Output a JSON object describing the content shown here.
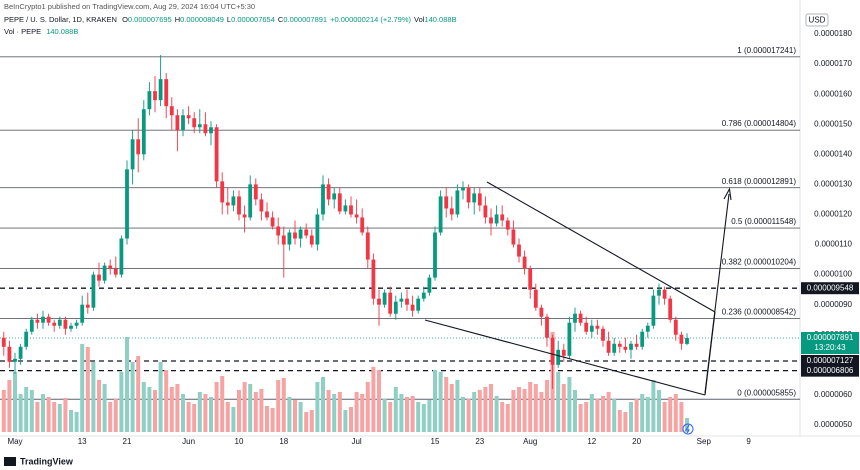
{
  "header": {
    "published": "BeInCrypto1 published on TradingView.com, Aug 29, 2024 16:04 UTC+5:30",
    "symbol": "PEPE / U. S. Dollar, 1D, KRAKEN",
    "ohlc": [
      {
        "key": "O",
        "value": "0.000007695"
      },
      {
        "key": "H",
        "value": "0.000008049"
      },
      {
        "key": "L",
        "value": "0.000007654"
      },
      {
        "key": "C",
        "value": "0.000007891"
      }
    ],
    "change": "+0.000000214 (+2.79%)",
    "vol_key": "Vol",
    "vol_value": "140.088B",
    "volume_title": "Vol · PEPE",
    "volume_value": "140.088B",
    "currency": "USD",
    "brand": "TradingView"
  },
  "chart_data": {
    "type": "candlestick",
    "categories": [
      null,
      null,
      "May",
      null,
      null,
      null,
      null,
      null,
      null,
      null,
      null,
      null,
      null,
      null,
      "13",
      null,
      null,
      null,
      null,
      null,
      null,
      null,
      "21",
      null,
      null,
      null,
      null,
      null,
      null,
      null,
      null,
      null,
      null,
      "Jun",
      null,
      null,
      null,
      null,
      null,
      null,
      null,
      null,
      "10",
      null,
      null,
      null,
      null,
      null,
      null,
      null,
      "18",
      null,
      null,
      null,
      null,
      null,
      null,
      null,
      null,
      null,
      null,
      null,
      null,
      "Jul",
      null,
      null,
      null,
      null,
      null,
      null,
      null,
      null,
      null,
      null,
      null,
      null,
      null,
      "15",
      null,
      null,
      null,
      null,
      null,
      null,
      null,
      "23",
      null,
      null,
      null,
      null,
      null,
      null,
      null,
      null,
      "Aug",
      null,
      null,
      null,
      null,
      null,
      null,
      null,
      null,
      null,
      null,
      "12",
      null,
      null,
      null,
      null,
      null,
      null,
      null,
      "20",
      null,
      null,
      null,
      null,
      null,
      null,
      null,
      null,
      null,
      null,
      null,
      "Sep",
      null,
      null,
      null,
      null,
      null,
      null,
      null,
      "9",
      null
    ],
    "open": [
      7.9e-06,
      7.6e-06,
      7.1e-06,
      7.2e-06,
      7.6e-06,
      8.1e-06,
      8.5e-06,
      8.4e-06,
      8.6e-06,
      8.4e-06,
      8.3e-06,
      8.5e-06,
      8.2e-06,
      8.3e-06,
      8.4e-06,
      9e-06,
      8.9e-06,
      1e-05,
      9.8e-06,
      1.03e-05,
      1.02e-05,
      1e-05,
      1.12e-05,
      1.35e-05,
      1.45e-05,
      1.4e-05,
      1.55e-05,
      1.61e-05,
      1.58e-05,
      1.65e-05,
      1.56e-05,
      1.53e-05,
      1.48e-05,
      1.53e-05,
      1.52e-05,
      1.49e-05,
      1.5e-05,
      1.47e-05,
      1.49e-05,
      1.31e-05,
      1.24e-05,
      1.23e-05,
      1.26e-05,
      1.2e-05,
      1.19e-05,
      1.3e-05,
      1.25e-05,
      1.21e-05,
      1.19e-05,
      1.16e-05,
      1.13e-05,
      1.1e-05,
      1.14e-05,
      1.12e-05,
      1.15e-05,
      1.13e-05,
      1.1e-05,
      1.2e-05,
      1.3e-05,
      1.25e-05,
      1.27e-05,
      1.21e-05,
      1.23e-05,
      1.2e-05,
      1.19e-05,
      1.14e-05,
      1.05e-05,
      9.2e-06,
      9e-06,
      9.4e-06,
      8.7e-06,
      9.1e-06,
      9.2e-06,
      9e-06,
      8.8e-06,
      9.2e-06,
      9.4e-06,
      9.9e-06,
      1.14e-05,
      1.26e-05,
      1.22e-05,
      1.2e-05,
      1.28e-05,
      1.29e-05,
      1.24e-05,
      1.27e-05,
      1.23e-05,
      1.19e-05,
      1.17e-05,
      1.2e-05,
      1.18e-05,
      1.15e-05,
      1.1e-05,
      1.06e-05,
      1.02e-05,
      9.5e-06,
      8.9e-06,
      8.6e-06,
      7.9e-06,
      7e-06,
      7.5e-06,
      7.3e-06,
      8.4e-06,
      8.7e-06,
      8.4e-06,
      8.1e-06,
      8.3e-06,
      8.2e-06,
      7.8e-06,
      7.4e-06,
      7.7e-06,
      7.6e-06,
      7.5e-06,
      7.7e-06,
      7.6e-06,
      8.1e-06,
      8.3e-06,
      9.3e-06,
      9.5e-06,
      9.2e-06,
      8.5e-06,
      8e-06,
      7.695e-06,
      null,
      null,
      null,
      null,
      null,
      null,
      null,
      null,
      null,
      null,
      null,
      null
    ],
    "high": [
      8.1e-06,
      7.8e-06,
      7.4e-06,
      7.7e-06,
      8.2e-06,
      8.6e-06,
      8.7e-06,
      8.8e-06,
      8.7e-06,
      8.5e-06,
      8.6e-06,
      8.6e-06,
      8.4e-06,
      8.5e-06,
      9.3e-06,
      9.4e-06,
      1.01e-05,
      1.04e-05,
      1.04e-05,
      1.05e-05,
      1.06e-05,
      1.13e-05,
      1.38e-05,
      1.48e-05,
      1.52e-05,
      1.58e-05,
      1.64e-05,
      1.66e-05,
      1.73e-05,
      1.67e-05,
      1.59e-05,
      1.55e-05,
      1.55e-05,
      1.56e-05,
      1.54e-05,
      1.55e-05,
      1.54e-05,
      1.51e-05,
      1.5e-05,
      1.34e-05,
      1.29e-05,
      1.28e-05,
      1.28e-05,
      1.23e-05,
      1.33e-05,
      1.32e-05,
      1.27e-05,
      1.24e-05,
      1.21e-05,
      1.19e-05,
      1.16e-05,
      1.15e-05,
      1.18e-05,
      1.16e-05,
      1.17e-05,
      1.15e-05,
      1.22e-05,
      1.33e-05,
      1.32e-05,
      1.29e-05,
      1.29e-05,
      1.25e-05,
      1.26e-05,
      1.25e-05,
      1.22e-05,
      1.16e-05,
      1.07e-05,
      9.5e-06,
      9.5e-06,
      9.6e-06,
      9.3e-06,
      9.4e-06,
      9.5e-06,
      9.3e-06,
      9.3e-06,
      9.6e-06,
      1e-05,
      1.16e-05,
      1.28e-05,
      1.29e-05,
      1.26e-05,
      1.3e-05,
      1.31e-05,
      1.3e-05,
      1.29e-05,
      1.29e-05,
      1.26e-05,
      1.22e-05,
      1.23e-05,
      1.23e-05,
      1.19e-05,
      1.18e-05,
      1.12e-05,
      1.08e-05,
      1.03e-05,
      9.7e-06,
      9e-06,
      8.7e-06,
      8e-06,
      7.8e-06,
      7.7e-06,
      8.6e-06,
      8.9e-06,
      8.8e-06,
      8.6e-06,
      8.5e-06,
      8.5e-06,
      8.3e-06,
      8.1e-06,
      7.9e-06,
      7.8e-06,
      7.9e-06,
      7.8e-06,
      8e-06,
      8.2e-06,
      8.4e-06,
      9.5e-06,
      9.7e-06,
      9.6e-06,
      9.3e-06,
      8.6e-06,
      8.1e-06,
      8.049e-06,
      null,
      null,
      null,
      null,
      null,
      null,
      null,
      null,
      null,
      null,
      null,
      null
    ],
    "low": [
      7.3e-06,
      6.9e-06,
      6.7e-06,
      7e-06,
      7.5e-06,
      8e-06,
      8.2e-06,
      8.2e-06,
      8.3e-06,
      8.1e-06,
      8.2e-06,
      8e-06,
      8.1e-06,
      8.2e-06,
      8.3e-06,
      8.7e-06,
      8.8e-06,
      9.6e-06,
      9.7e-06,
      1e-05,
      9.9e-06,
      9.9e-06,
      1.1e-05,
      1.3e-05,
      1.34e-05,
      1.38e-05,
      1.53e-05,
      1.54e-05,
      1.56e-05,
      1.52e-05,
      1.48e-05,
      1.41e-05,
      1.46e-05,
      1.5e-05,
      1.47e-05,
      1.47e-05,
      1.46e-05,
      1.43e-05,
      1.29e-05,
      1.2e-05,
      1.2e-05,
      1.21e-05,
      1.18e-05,
      1.14e-05,
      1.18e-05,
      1.23e-05,
      1.18e-05,
      1.18e-05,
      1.15e-05,
      1.1e-05,
      9.9e-06,
      1.08e-05,
      1.1e-05,
      1.09e-05,
      1.12e-05,
      1.09e-05,
      1.08e-05,
      1.18e-05,
      1.23e-05,
      1.22e-05,
      1.2e-05,
      1.2e-05,
      1.19e-05,
      1.17e-05,
      1.13e-05,
      1.02e-05,
      9e-06,
      8.3e-06,
      8.9e-06,
      8.6e-06,
      8.5e-06,
      8.9e-06,
      8.8e-06,
      8.6e-06,
      8.7e-06,
      9.1e-06,
      9.3e-06,
      9.8e-06,
      1.13e-05,
      1.19e-05,
      1.18e-05,
      1.19e-05,
      1.25e-05,
      1.22e-05,
      1.2e-05,
      1.21e-05,
      1.17e-05,
      1.13e-05,
      1.16e-05,
      1.16e-05,
      1.13e-05,
      1.09e-05,
      1.04e-05,
      1e-05,
      9.2e-06,
      8.8e-06,
      8.3e-06,
      7.6e-06,
      6.2e-06,
      6.9e-06,
      7.1e-06,
      7.2e-06,
      8.1e-06,
      8.3e-06,
      8e-06,
      7.9e-06,
      8e-06,
      7.6e-06,
      7.3e-06,
      7.3e-06,
      7.4e-06,
      7.4e-06,
      7.2e-06,
      7.5e-06,
      7.5e-06,
      7.9e-06,
      8.2e-06,
      9e-06,
      9e-06,
      8.4e-06,
      7.8e-06,
      7.5e-06,
      7.654e-06,
      null,
      null,
      null,
      null,
      null,
      null,
      null,
      null,
      null,
      null,
      null,
      null
    ],
    "close": [
      7.6e-06,
      7.1e-06,
      7.2e-06,
      7.6e-06,
      8.1e-06,
      8.5e-06,
      8.4e-06,
      8.6e-06,
      8.4e-06,
      8.3e-06,
      8.5e-06,
      8.2e-06,
      8.3e-06,
      8.4e-06,
      9e-06,
      8.9e-06,
      1e-05,
      9.8e-06,
      1.03e-05,
      1.02e-05,
      1e-05,
      1.12e-05,
      1.35e-05,
      1.45e-05,
      1.4e-05,
      1.55e-05,
      1.61e-05,
      1.58e-05,
      1.65e-05,
      1.56e-05,
      1.53e-05,
      1.48e-05,
      1.53e-05,
      1.52e-05,
      1.49e-05,
      1.5e-05,
      1.47e-05,
      1.49e-05,
      1.31e-05,
      1.24e-05,
      1.23e-05,
      1.26e-05,
      1.2e-05,
      1.19e-05,
      1.3e-05,
      1.25e-05,
      1.21e-05,
      1.19e-05,
      1.16e-05,
      1.13e-05,
      1.1e-05,
      1.14e-05,
      1.12e-05,
      1.15e-05,
      1.13e-05,
      1.1e-05,
      1.2e-05,
      1.3e-05,
      1.25e-05,
      1.27e-05,
      1.21e-05,
      1.23e-05,
      1.2e-05,
      1.19e-05,
      1.14e-05,
      1.05e-05,
      9.2e-06,
      9e-06,
      9.4e-06,
      8.7e-06,
      9.1e-06,
      9.2e-06,
      9e-06,
      8.8e-06,
      9.2e-06,
      9.4e-06,
      9.9e-06,
      1.14e-05,
      1.26e-05,
      1.22e-05,
      1.2e-05,
      1.28e-05,
      1.29e-05,
      1.24e-05,
      1.27e-05,
      1.23e-05,
      1.19e-05,
      1.17e-05,
      1.2e-05,
      1.18e-05,
      1.15e-05,
      1.1e-05,
      1.06e-05,
      1.02e-05,
      9.5e-06,
      8.9e-06,
      8.6e-06,
      7.9e-06,
      7e-06,
      7.5e-06,
      7.3e-06,
      8.4e-06,
      8.7e-06,
      8.4e-06,
      8.1e-06,
      8.3e-06,
      8.2e-06,
      7.8e-06,
      7.4e-06,
      7.7e-06,
      7.6e-06,
      7.5e-06,
      7.7e-06,
      7.6e-06,
      8.1e-06,
      8.3e-06,
      9.3e-06,
      9.5e-06,
      9.2e-06,
      8.5e-06,
      8e-06,
      7.7e-06,
      7.891e-06,
      null,
      null,
      null,
      null,
      null,
      null,
      null,
      null,
      null,
      null,
      null,
      null
    ],
    "volume": [
      420,
      520,
      600,
      380,
      450,
      420,
      300,
      380,
      350,
      300,
      280,
      340,
      220,
      200,
      880,
      850,
      700,
      520,
      480,
      300,
      330,
      600,
      950,
      700,
      760,
      500,
      450,
      420,
      700,
      620,
      450,
      480,
      380,
      300,
      280,
      400,
      380,
      350,
      500,
      560,
      300,
      250,
      420,
      500,
      480,
      400,
      430,
      260,
      240,
      520,
      540,
      350,
      320,
      300,
      200,
      220,
      500,
      550,
      420,
      380,
      400,
      220,
      250,
      400,
      380,
      500,
      650,
      620,
      330,
      300,
      450,
      380,
      350,
      360,
      300,
      280,
      320,
      620,
      600,
      550,
      480,
      520,
      350,
      330,
      400,
      420,
      450,
      480,
      360,
      300,
      280,
      420,
      450,
      430,
      500,
      480,
      400,
      520,
      1000,
      600,
      480,
      550,
      420,
      280,
      300,
      380,
      330,
      360,
      400,
      330,
      220,
      200,
      300,
      330,
      380,
      350,
      520,
      420,
      300,
      350,
      380,
      300,
      140.088,
      null,
      null,
      null,
      null,
      null,
      null,
      null,
      null,
      null,
      null,
      null,
      null
    ],
    "up_color": "#089981",
    "down_color": "#f23645",
    "volume_up_color": "#8fcfc4",
    "volume_down_color": "#f7a3a3",
    "ylim": [
      4.5e-06,
      1.84e-05
    ],
    "yticks": [
      {
        "value": 1.8e-05,
        "label": "0.0000180"
      },
      {
        "value": 1.7e-05,
        "label": "0.0000170"
      },
      {
        "value": 1.6e-05,
        "label": "0.0000160"
      },
      {
        "value": 1.5e-05,
        "label": "0.0000150"
      },
      {
        "value": 1.4e-05,
        "label": "0.0000140"
      },
      {
        "value": 1.3e-05,
        "label": "0.0000130"
      },
      {
        "value": 1.2e-05,
        "label": "0.0000120"
      },
      {
        "value": 1.1e-05,
        "label": "0.0000110"
      },
      {
        "value": 1e-05,
        "label": "0.0000100"
      },
      {
        "value": 9e-06,
        "label": "0.0000090"
      },
      {
        "value": 8e-06,
        "label": "0.0000080"
      },
      {
        "value": 7e-06,
        "label": "0.0000070"
      },
      {
        "value": 6e-06,
        "label": "0.0000060"
      },
      {
        "value": 5e-06,
        "label": "0.0000050"
      }
    ],
    "fib_levels": [
      {
        "value": 1.7241e-05,
        "label": "1 (0.000017241)"
      },
      {
        "value": 1.4804e-05,
        "label": "0.786 (0.000014804)"
      },
      {
        "value": 1.2891e-05,
        "label": "0.618 (0.000012891)"
      },
      {
        "value": 1.1548e-05,
        "label": "0.5 (0.000011548)"
      },
      {
        "value": 1.0204e-05,
        "label": "0.382 (0.000010204)"
      },
      {
        "value": 8.542e-06,
        "label": "0.236 (0.000008542)"
      },
      {
        "value": 5.855e-06,
        "label": "0 (0.000005855)"
      }
    ],
    "levels": [
      {
        "value": 9.548e-06,
        "label": "0.000009548"
      },
      {
        "value": 7.127e-06,
        "label": "0.000007127"
      },
      {
        "value": 6.806e-06,
        "label": "0.000006806"
      }
    ],
    "last_price": {
      "value": 7.891e-06,
      "label": "0.000007891",
      "countdown": "13:20:43"
    }
  }
}
